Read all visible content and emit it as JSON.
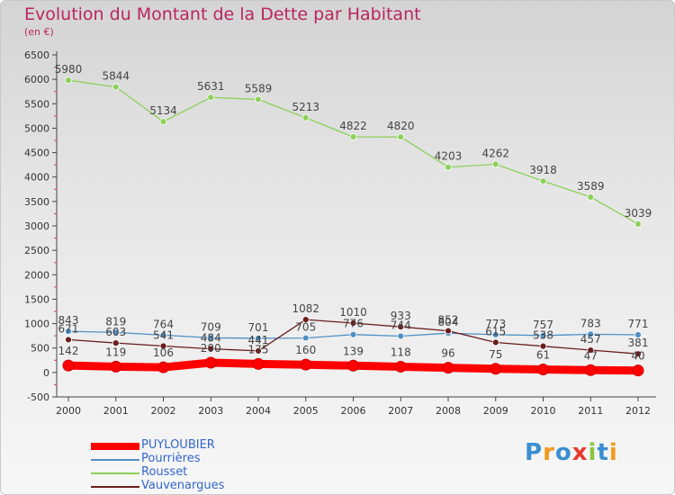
{
  "chart_data": {
    "type": "line",
    "title": "Evolution du Montant de la Dette par Habitant",
    "subtitle": "(en €)",
    "x": [
      "2000",
      "2001",
      "2002",
      "2003",
      "2004",
      "2005",
      "2006",
      "2007",
      "2008",
      "2009",
      "2010",
      "2011",
      "2012"
    ],
    "ylim": [
      -500,
      6500
    ],
    "yticks": [
      -500,
      0,
      500,
      1000,
      1500,
      2000,
      2500,
      3000,
      3500,
      4000,
      4500,
      5000,
      5500,
      6000,
      6500
    ],
    "grid": false,
    "legend": "bottom-left",
    "series": [
      {
        "name": "PUYLOUBIER",
        "color": "#ff0000",
        "labeled": true,
        "values": [
          142,
          119,
          106,
          200,
          175,
          160,
          139,
          118,
          96,
          75,
          61,
          47,
          40
        ]
      },
      {
        "name": "Pourrières",
        "color": "#4f90c4",
        "labeled": true,
        "values": [
          843,
          819,
          764,
          709,
          701,
          705,
          776,
          744,
          804,
          773,
          757,
          783,
          771
        ]
      },
      {
        "name": "Rousset",
        "color": "#8dd05a",
        "labeled": true,
        "values": [
          5980,
          5844,
          5134,
          5631,
          5589,
          5213,
          4822,
          4820,
          4203,
          4262,
          3918,
          3589,
          3039
        ]
      },
      {
        "name": "Vauvenargues",
        "color": "#6b1d1d",
        "labeled": true,
        "values": [
          671,
          603,
          541,
          484,
          441,
          1082,
          1010,
          933,
          852,
          615,
          538,
          457,
          381
        ]
      }
    ]
  },
  "brand": {
    "text": "Proxiti",
    "colors": [
      "#3a8fd0",
      "#f29b1d",
      "#3a8fd0",
      "#e63b2e",
      "#8cc63f",
      "#3a8fd0",
      "#f29b1d"
    ]
  }
}
